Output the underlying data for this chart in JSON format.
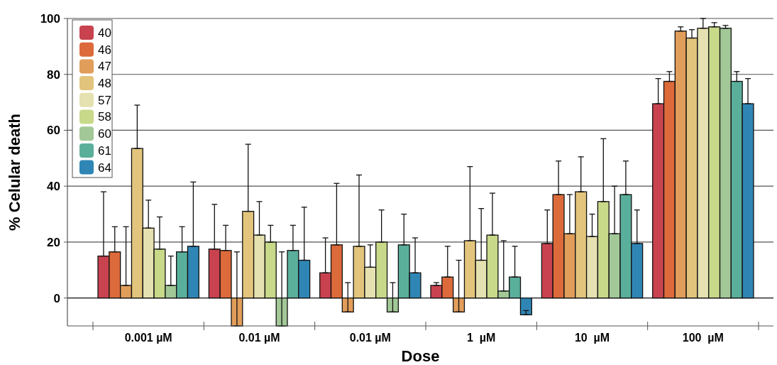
{
  "chart_data": {
    "type": "bar",
    "xlabel": "Dose",
    "ylabel": "% Celular death",
    "categories": [
      "0.001 µM",
      "0.01 µM",
      "0.01 µM",
      "1  µM",
      "10  µM",
      "100  µM"
    ],
    "ylim": [
      -10,
      100
    ],
    "yticks": [
      0,
      20,
      40,
      60,
      80,
      100
    ],
    "grid": "y",
    "legend": "top left",
    "series": [
      {
        "name": "40",
        "color": "#c8434f",
        "values": [
          15,
          17.5,
          9,
          4.5,
          19.5,
          69.5
        ],
        "errors": [
          [
            15,
            38
          ],
          [
            17.5,
            33.5
          ],
          [
            9,
            21.5
          ],
          [
            4.5,
            5.5
          ],
          [
            19.5,
            31.5
          ],
          [
            69.5,
            78.5
          ]
        ]
      },
      {
        "name": "46",
        "color": "#dc6a3b",
        "values": [
          16.5,
          17,
          19,
          7.5,
          37,
          77.5
        ],
        "errors": [
          [
            16.5,
            25.5
          ],
          [
            17,
            26
          ],
          [
            19,
            41
          ],
          [
            7.5,
            18.5
          ],
          [
            37,
            49
          ],
          [
            77.5,
            81
          ]
        ]
      },
      {
        "name": "47",
        "color": "#e19d5a",
        "values": [
          4.5,
          -10,
          -5,
          -5,
          23,
          95.5
        ],
        "errors": [
          [
            4.5,
            25.5
          ],
          [
            -10,
            16.5
          ],
          [
            -5,
            5.5
          ],
          [
            -5,
            13.5
          ],
          [
            23,
            37
          ],
          [
            95.5,
            97
          ]
        ]
      },
      {
        "name": "48",
        "color": "#e2c47c",
        "values": [
          53.5,
          31,
          18.5,
          20.5,
          38,
          93
        ],
        "errors": [
          [
            53.5,
            69
          ],
          [
            31,
            55
          ],
          [
            18.5,
            44
          ],
          [
            20.5,
            47
          ],
          [
            38,
            50.5
          ],
          [
            93,
            96
          ]
        ]
      },
      {
        "name": "57",
        "color": "#e5e1b0",
        "values": [
          25,
          22.5,
          11,
          13.5,
          22,
          96.5
        ],
        "errors": [
          [
            25,
            35
          ],
          [
            22.5,
            34.5
          ],
          [
            11,
            19
          ],
          [
            13.5,
            32
          ],
          [
            22,
            30
          ],
          [
            96.5,
            100
          ]
        ]
      },
      {
        "name": "58",
        "color": "#c8d98a",
        "values": [
          17.5,
          20,
          20,
          22.5,
          34.5,
          97
        ],
        "errors": [
          [
            17.5,
            29
          ],
          [
            20,
            26
          ],
          [
            20,
            31.5
          ],
          [
            22.5,
            37.5
          ],
          [
            34.5,
            57
          ],
          [
            97,
            98.5
          ]
        ]
      },
      {
        "name": "60",
        "color": "#a2c897",
        "values": [
          4.5,
          -10,
          -5,
          2.5,
          23,
          96.5
        ],
        "errors": [
          [
            4.5,
            15
          ],
          [
            -10,
            16.5
          ],
          [
            -5,
            5.5
          ],
          [
            2.5,
            20.5
          ],
          [
            23,
            40
          ],
          [
            96.5,
            97.5
          ]
        ]
      },
      {
        "name": "61",
        "color": "#5aaf9b",
        "values": [
          16.5,
          17,
          19,
          7.5,
          37,
          77.5
        ],
        "errors": [
          [
            16.5,
            25.5
          ],
          [
            17,
            26
          ],
          [
            19,
            30
          ],
          [
            7.5,
            18.5
          ],
          [
            37,
            49
          ],
          [
            77.5,
            81
          ]
        ]
      },
      {
        "name": "64",
        "color": "#2f86b5",
        "values": [
          18.5,
          13.5,
          9,
          -6,
          19.5,
          69.5
        ],
        "errors": [
          [
            18.5,
            41.5
          ],
          [
            13.5,
            32.5
          ],
          [
            9,
            21.5
          ],
          [
            -6,
            -4.5
          ],
          [
            19.5,
            31.5
          ],
          [
            69.5,
            78.5
          ]
        ]
      }
    ]
  }
}
